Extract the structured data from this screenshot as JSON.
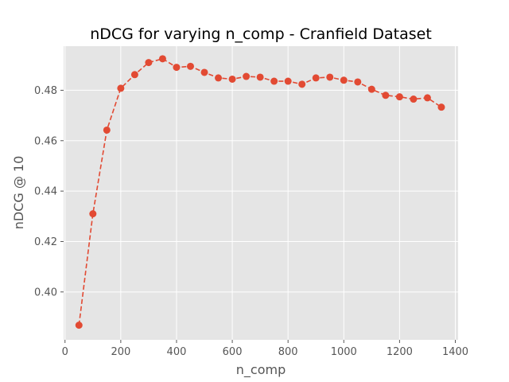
{
  "chart_data": {
    "type": "line",
    "title": "nDCG for varying n_comp - Cranfield Dataset",
    "xlabel": "n_comp",
    "ylabel": "nDCG @ 10",
    "xlim": [
      -5,
      1410
    ],
    "ylim": [
      0.381,
      0.4975
    ],
    "xticks": [
      0,
      200,
      400,
      600,
      800,
      1000,
      1200,
      1400
    ],
    "yticks": [
      0.4,
      0.42,
      0.44,
      0.46,
      0.48
    ],
    "grid": true,
    "line_style": "dashed",
    "marker": "circle",
    "colors": {
      "series": "#E24A33",
      "plot_background": "#E5E5E5",
      "grid": "#FFFFFF",
      "tick": "#555555"
    },
    "series": [
      {
        "x": [
          50,
          100,
          150,
          200,
          250,
          300,
          350,
          400,
          450,
          500,
          550,
          600,
          650,
          700,
          750,
          800,
          850,
          900,
          950,
          1000,
          1050,
          1100,
          1150,
          1200,
          1250,
          1300,
          1350
        ],
        "values": [
          0.3868,
          0.431,
          0.4642,
          0.4808,
          0.4862,
          0.491,
          0.4925,
          0.4891,
          0.4895,
          0.4871,
          0.4849,
          0.4844,
          0.4855,
          0.4852,
          0.4836,
          0.4836,
          0.4824,
          0.4849,
          0.4852,
          0.484,
          0.4833,
          0.4804,
          0.478,
          0.4774,
          0.4765,
          0.477,
          0.4733
        ]
      }
    ]
  }
}
